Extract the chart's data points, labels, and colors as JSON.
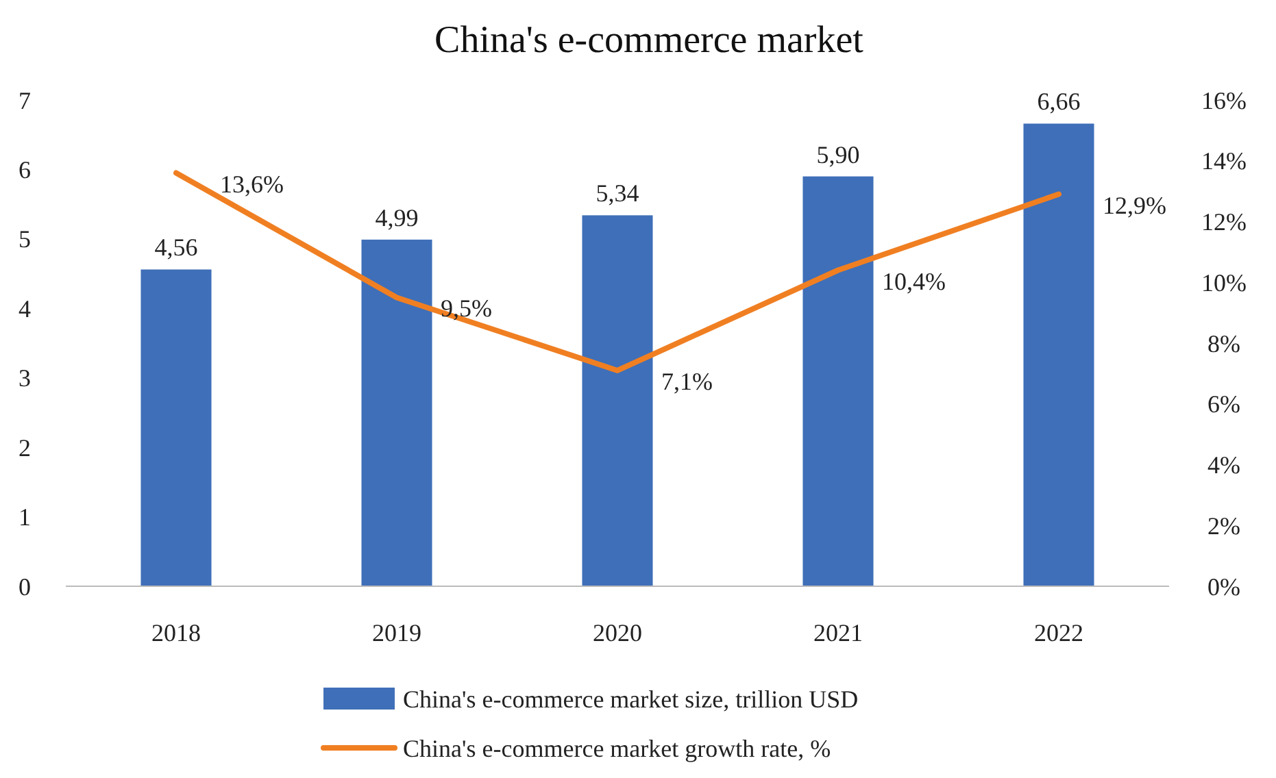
{
  "chart_data": {
    "type": "bar",
    "title": "China's e-commerce market",
    "categories": [
      "2018",
      "2019",
      "2020",
      "2021",
      "2022"
    ],
    "series": [
      {
        "name": "China's e-commerce market size, trillion USD",
        "color": "#3f6fb8",
        "values": [
          4.56,
          4.99,
          5.34,
          5.9,
          6.66
        ],
        "value_labels": [
          "4,56",
          "4,99",
          "5,34",
          "5,90",
          "6,66"
        ]
      },
      {
        "name": "China's e-commerce market growth rate, %",
        "type": "line",
        "axis": "y2",
        "color": "#f07f22",
        "values": [
          13.6,
          9.5,
          7.1,
          10.4,
          12.9
        ],
        "value_labels": [
          "13,6%",
          "9,5%",
          "7,1%",
          "10,4%",
          "12,9%"
        ]
      }
    ],
    "ylim": [
      0,
      7
    ],
    "yticks": [
      0,
      1,
      2,
      3,
      4,
      5,
      6,
      7
    ],
    "y2lim": [
      0,
      16
    ],
    "y2ticks": [
      {
        "value": 0,
        "label": "0%"
      },
      {
        "value": 2,
        "label": "2%"
      },
      {
        "value": 4,
        "label": "4%"
      },
      {
        "value": 6,
        "label": "6%"
      },
      {
        "value": 8,
        "label": "8%"
      },
      {
        "value": 10,
        "label": "10%"
      },
      {
        "value": 12,
        "label": "12%"
      },
      {
        "value": 14,
        "label": "14%"
      },
      {
        "value": 16,
        "label": "16%"
      }
    ],
    "grid": false,
    "legend": "bottom",
    "marker": "none",
    "line_style": "solid"
  }
}
